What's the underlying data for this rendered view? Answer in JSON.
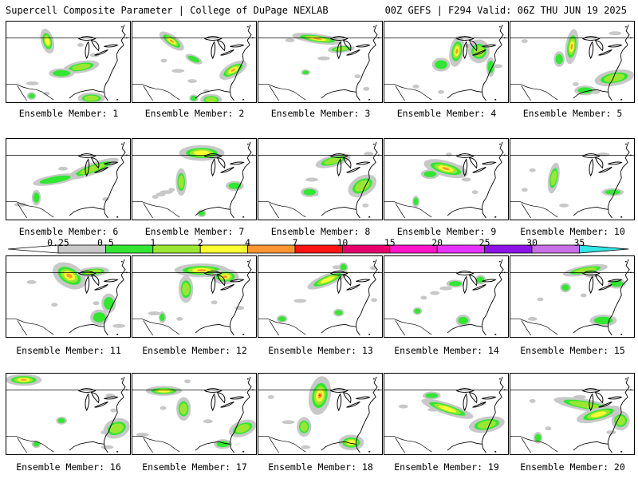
{
  "header": {
    "left": "Supercell Composite Parameter | College of DuPage NEXLAB",
    "right": "00Z GEFS | F294 Valid: 06Z THU JUN 19 2025"
  },
  "colorbar": {
    "labels": [
      "0.25",
      "0.5",
      "1",
      "2",
      "4",
      "7",
      "10",
      "15",
      "20",
      "25",
      "30",
      "35"
    ],
    "colors": [
      "#c8c8c8",
      "#32e632",
      "#9be632",
      "#ffff32",
      "#ff9632",
      "#ff1414",
      "#e6006e",
      "#ff14c8",
      "#e632ff",
      "#8c14e6",
      "#c86ee6",
      "#32e6e6"
    ]
  },
  "panels": [
    {
      "label": "Ensemble Member: 1",
      "blobs": [
        {
          "x": 52,
          "y": 25,
          "rx": 7,
          "ry": 13,
          "r": -15,
          "lv": 3
        },
        {
          "x": 95,
          "y": 58,
          "rx": 20,
          "ry": 6,
          "r": -10,
          "lv": 2
        },
        {
          "x": 70,
          "y": 66,
          "rx": 14,
          "ry": 5,
          "r": 0,
          "lv": 1
        },
        {
          "x": 108,
          "y": 98,
          "rx": 15,
          "ry": 6,
          "r": 0,
          "lv": 2
        },
        {
          "x": 32,
          "y": 95,
          "rx": 5,
          "ry": 4,
          "r": 0,
          "lv": 1
        }
      ]
    },
    {
      "label": "Ensemble Member: 2",
      "blobs": [
        {
          "x": 50,
          "y": 25,
          "rx": 16,
          "ry": 6,
          "r": 35,
          "lv": 4
        },
        {
          "x": 78,
          "y": 48,
          "rx": 10,
          "ry": 4,
          "r": 25,
          "lv": 1
        },
        {
          "x": 128,
          "y": 62,
          "rx": 17,
          "ry": 7,
          "r": -30,
          "lv": 4
        },
        {
          "x": 100,
          "y": 100,
          "rx": 12,
          "ry": 6,
          "r": 0,
          "lv": 2
        },
        {
          "x": 78,
          "y": 98,
          "rx": 5,
          "ry": 4,
          "r": 0,
          "lv": 1
        }
      ]
    },
    {
      "label": "Ensemble Member: 3",
      "blobs": [
        {
          "x": 75,
          "y": 22,
          "rx": 28,
          "ry": 5,
          "r": 8,
          "lv": 4
        },
        {
          "x": 105,
          "y": 35,
          "rx": 15,
          "ry": 4,
          "r": -5,
          "lv": 2
        },
        {
          "x": 60,
          "y": 65,
          "rx": 5,
          "ry": 3,
          "r": 0,
          "lv": 1
        }
      ]
    },
    {
      "label": "Ensemble Member: 4",
      "blobs": [
        {
          "x": 92,
          "y": 38,
          "rx": 8,
          "ry": 16,
          "r": 10,
          "lv": 4
        },
        {
          "x": 120,
          "y": 38,
          "rx": 12,
          "ry": 12,
          "r": 0,
          "lv": 2
        },
        {
          "x": 72,
          "y": 55,
          "rx": 10,
          "ry": 7,
          "r": 0,
          "lv": 1
        },
        {
          "x": 135,
          "y": 58,
          "rx": 5,
          "ry": 10,
          "r": 0,
          "lv": 1
        }
      ]
    },
    {
      "label": "Ensemble Member: 5",
      "blobs": [
        {
          "x": 78,
          "y": 32,
          "rx": 7,
          "ry": 18,
          "r": 8,
          "lv": 4
        },
        {
          "x": 62,
          "y": 48,
          "rx": 6,
          "ry": 8,
          "r": 0,
          "lv": 1
        },
        {
          "x": 132,
          "y": 72,
          "rx": 22,
          "ry": 8,
          "r": -10,
          "lv": 2
        },
        {
          "x": 95,
          "y": 88,
          "rx": 12,
          "ry": 5,
          "r": 0,
          "lv": 1
        }
      ]
    },
    {
      "label": "Ensemble Member: 6",
      "blobs": [
        {
          "x": 110,
          "y": 38,
          "rx": 30,
          "ry": 6,
          "r": -20,
          "lv": 2
        },
        {
          "x": 62,
          "y": 52,
          "rx": 25,
          "ry": 5,
          "r": -10,
          "lv": 1
        },
        {
          "x": 38,
          "y": 75,
          "rx": 5,
          "ry": 8,
          "r": 0,
          "lv": 1
        }
      ]
    },
    {
      "label": "Ensemble Member: 7",
      "blobs": [
        {
          "x": 88,
          "y": 18,
          "rx": 25,
          "ry": 8,
          "r": 0,
          "lv": 3
        },
        {
          "x": 62,
          "y": 55,
          "rx": 6,
          "ry": 14,
          "r": 0,
          "lv": 2
        },
        {
          "x": 130,
          "y": 60,
          "rx": 10,
          "ry": 5,
          "r": 0,
          "lv": 1
        },
        {
          "x": 88,
          "y": 95,
          "rx": 5,
          "ry": 4,
          "r": 0,
          "lv": 1
        }
      ]
    },
    {
      "label": "Ensemble Member: 8",
      "blobs": [
        {
          "x": 95,
          "y": 28,
          "rx": 20,
          "ry": 6,
          "r": -15,
          "lv": 2
        },
        {
          "x": 132,
          "y": 60,
          "rx": 17,
          "ry": 10,
          "r": -30,
          "lv": 2
        },
        {
          "x": 65,
          "y": 68,
          "rx": 10,
          "ry": 5,
          "r": 0,
          "lv": 1
        }
      ]
    },
    {
      "label": "Ensemble Member: 9",
      "blobs": [
        {
          "x": 78,
          "y": 38,
          "rx": 25,
          "ry": 8,
          "r": 15,
          "lv": 4
        },
        {
          "x": 58,
          "y": 45,
          "rx": 10,
          "ry": 5,
          "r": 0,
          "lv": 1
        },
        {
          "x": 40,
          "y": 80,
          "rx": 4,
          "ry": 6,
          "r": 0,
          "lv": 1
        }
      ]
    },
    {
      "label": "Ensemble Member: 10",
      "blobs": [
        {
          "x": 55,
          "y": 50,
          "rx": 6,
          "ry": 16,
          "r": 10,
          "lv": 2
        },
        {
          "x": 130,
          "y": 68,
          "rx": 12,
          "ry": 4,
          "r": 0,
          "lv": 1
        }
      ]
    },
    {
      "label": "Ensemble Member: 11",
      "blobs": [
        {
          "x": 80,
          "y": 25,
          "rx": 20,
          "ry": 12,
          "r": 30,
          "lv": 4
        },
        {
          "x": 110,
          "y": 20,
          "rx": 18,
          "ry": 5,
          "r": -5,
          "lv": 2
        },
        {
          "x": 118,
          "y": 78,
          "rx": 10,
          "ry": 8,
          "r": 0,
          "lv": 1
        },
        {
          "x": 130,
          "y": 60,
          "rx": 8,
          "ry": 10,
          "r": 0,
          "lv": 1
        }
      ]
    },
    {
      "label": "Ensemble Member: 12",
      "blobs": [
        {
          "x": 88,
          "y": 18,
          "rx": 30,
          "ry": 7,
          "r": 0,
          "lv": 4
        },
        {
          "x": 118,
          "y": 26,
          "rx": 15,
          "ry": 8,
          "r": 0,
          "lv": 4
        },
        {
          "x": 68,
          "y": 42,
          "rx": 8,
          "ry": 14,
          "r": 0,
          "lv": 2
        },
        {
          "x": 38,
          "y": 78,
          "rx": 4,
          "ry": 6,
          "r": 0,
          "lv": 1
        }
      ]
    },
    {
      "label": "Ensemble Member: 13",
      "blobs": [
        {
          "x": 88,
          "y": 30,
          "rx": 24,
          "ry": 6,
          "r": -22,
          "lv": 3
        },
        {
          "x": 108,
          "y": 14,
          "rx": 5,
          "ry": 5,
          "r": 0,
          "lv": 1
        },
        {
          "x": 102,
          "y": 72,
          "rx": 6,
          "ry": 4,
          "r": 0,
          "lv": 1
        },
        {
          "x": 30,
          "y": 80,
          "rx": 6,
          "ry": 4,
          "r": 0,
          "lv": 1
        }
      ]
    },
    {
      "label": "Ensemble Member: 14",
      "blobs": [
        {
          "x": 90,
          "y": 35,
          "rx": 10,
          "ry": 4,
          "r": 0,
          "lv": 1
        },
        {
          "x": 122,
          "y": 30,
          "rx": 6,
          "ry": 5,
          "r": 0,
          "lv": 1
        },
        {
          "x": 100,
          "y": 82,
          "rx": 8,
          "ry": 6,
          "r": 0,
          "lv": 1
        },
        {
          "x": 42,
          "y": 70,
          "rx": 5,
          "ry": 4,
          "r": 0,
          "lv": 1
        }
      ]
    },
    {
      "label": "Ensemble Member: 15",
      "blobs": [
        {
          "x": 95,
          "y": 18,
          "rx": 25,
          "ry": 5,
          "r": -10,
          "lv": 2
        },
        {
          "x": 135,
          "y": 35,
          "rx": 10,
          "ry": 5,
          "r": 0,
          "lv": 1
        },
        {
          "x": 70,
          "y": 40,
          "rx": 6,
          "ry": 5,
          "r": 0,
          "lv": 1
        },
        {
          "x": 118,
          "y": 82,
          "rx": 15,
          "ry": 6,
          "r": 0,
          "lv": 1
        }
      ]
    },
    {
      "label": "Ensemble Member: 16",
      "blobs": [
        {
          "x": 22,
          "y": 8,
          "rx": 20,
          "ry": 6,
          "r": 0,
          "lv": 4
        },
        {
          "x": 140,
          "y": 70,
          "rx": 15,
          "ry": 10,
          "r": -20,
          "lv": 2
        },
        {
          "x": 70,
          "y": 60,
          "rx": 6,
          "ry": 4,
          "r": 0,
          "lv": 1
        },
        {
          "x": 38,
          "y": 90,
          "rx": 5,
          "ry": 4,
          "r": 0,
          "lv": 1
        }
      ]
    },
    {
      "label": "Ensemble Member: 17",
      "blobs": [
        {
          "x": 40,
          "y": 22,
          "rx": 20,
          "ry": 5,
          "r": 0,
          "lv": 3
        },
        {
          "x": 65,
          "y": 45,
          "rx": 8,
          "ry": 12,
          "r": 0,
          "lv": 2
        },
        {
          "x": 140,
          "y": 70,
          "rx": 16,
          "ry": 8,
          "r": -20,
          "lv": 2
        },
        {
          "x": 115,
          "y": 90,
          "rx": 10,
          "ry": 5,
          "r": 0,
          "lv": 1
        }
      ]
    },
    {
      "label": "Ensemble Member: 18",
      "blobs": [
        {
          "x": 78,
          "y": 28,
          "rx": 12,
          "ry": 20,
          "r": 10,
          "lv": 5
        },
        {
          "x": 58,
          "y": 68,
          "rx": 8,
          "ry": 10,
          "r": 0,
          "lv": 2
        },
        {
          "x": 118,
          "y": 88,
          "rx": 14,
          "ry": 8,
          "r": 0,
          "lv": 3
        }
      ]
    },
    {
      "label": "Ensemble Member: 19",
      "blobs": [
        {
          "x": 80,
          "y": 45,
          "rx": 30,
          "ry": 6,
          "r": 18,
          "lv": 3
        },
        {
          "x": 130,
          "y": 65,
          "rx": 20,
          "ry": 8,
          "r": -10,
          "lv": 2
        },
        {
          "x": 60,
          "y": 28,
          "rx": 10,
          "ry": 4,
          "r": 0,
          "lv": 1
        }
      ]
    },
    {
      "label": "Ensemble Member: 20",
      "blobs": [
        {
          "x": 95,
          "y": 40,
          "rx": 35,
          "ry": 6,
          "r": 10,
          "lv": 2
        },
        {
          "x": 112,
          "y": 52,
          "rx": 25,
          "ry": 7,
          "r": -15,
          "lv": 3
        },
        {
          "x": 140,
          "y": 60,
          "rx": 10,
          "ry": 10,
          "r": 0,
          "lv": 2
        },
        {
          "x": 35,
          "y": 82,
          "rx": 5,
          "ry": 6,
          "r": 0,
          "lv": 1
        }
      ]
    }
  ]
}
